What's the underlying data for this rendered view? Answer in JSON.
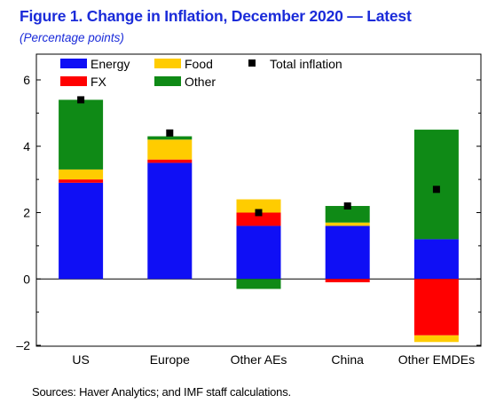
{
  "title": "Figure 1.  Change in Inflation, December 2020 — Latest",
  "subtitle": "(Percentage points)",
  "source": "Sources: Haver Analytics; and IMF staff calculations.",
  "colors": {
    "Energy": "#0f0ff5",
    "FX": "#ff0000",
    "Food": "#ffcc00",
    "Other": "#0f8a16",
    "Total inflation": "#000000"
  },
  "chart_data": {
    "type": "bar",
    "stacked": true,
    "categories": [
      "US",
      "Europe",
      "Other AEs",
      "China",
      "Other EMDEs"
    ],
    "series": [
      {
        "name": "Energy",
        "values": [
          2.9,
          3.5,
          1.6,
          1.6,
          1.2
        ]
      },
      {
        "name": "FX",
        "values": [
          0.1,
          0.1,
          0.4,
          -0.1,
          -1.7
        ]
      },
      {
        "name": "Food",
        "values": [
          0.3,
          0.6,
          0.4,
          0.1,
          -0.2
        ]
      },
      {
        "name": "Other",
        "values": [
          2.1,
          0.1,
          -0.3,
          0.5,
          3.3
        ]
      }
    ],
    "total": {
      "name": "Total inflation",
      "values": [
        5.4,
        4.4,
        2.0,
        2.2,
        2.7
      ]
    },
    "ylim": [
      -2,
      6
    ],
    "yticks": [
      -2,
      0,
      2,
      4,
      6
    ],
    "ytick_labels": [
      "–2",
      "0",
      "2",
      "4",
      "6"
    ],
    "legend_position": "top-left",
    "grid": false
  }
}
